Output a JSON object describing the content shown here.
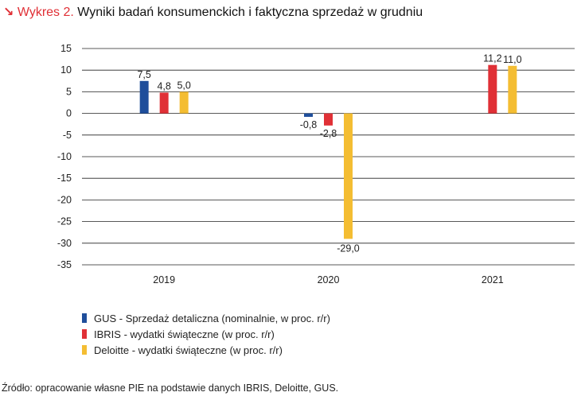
{
  "header": {
    "arrow": "↘",
    "label": "Wykres 2.",
    "title": "Wyniki badań konsumenckich i faktyczna sprzedaż w grudniu"
  },
  "chart_data": {
    "type": "bar",
    "categories": [
      "2019",
      "2020",
      "2021"
    ],
    "ylim": [
      -35,
      15
    ],
    "yticks": [
      15,
      10,
      5,
      0,
      -5,
      -10,
      -15,
      -20,
      -25,
      -30,
      -35
    ],
    "grid": true,
    "legend_position": "bottom-left",
    "series": [
      {
        "name": "GUS - Sprzedaż detaliczna (nominalnie, w proc. r/r)",
        "color": "#1f4e9b",
        "values": [
          7.5,
          -0.8,
          null
        ],
        "labels": [
          "7,5",
          "-0,8",
          ""
        ]
      },
      {
        "name": "IBRIS - wydatki świąteczne (w proc. r/r)",
        "color": "#e03036",
        "values": [
          4.8,
          -2.8,
          11.2
        ],
        "labels": [
          "4,8",
          "-2,8",
          "11,2"
        ]
      },
      {
        "name": "Deloitte - wydatki świąteczne (w proc. r/r)",
        "color": "#f4bd32",
        "values": [
          5.0,
          -29.0,
          11.0
        ],
        "labels": [
          "5,0",
          "-29,0",
          "11,0"
        ]
      }
    ]
  },
  "source": "Źródło: opracowanie własne PIE na podstawie danych IBRIS, Deloitte, GUS."
}
